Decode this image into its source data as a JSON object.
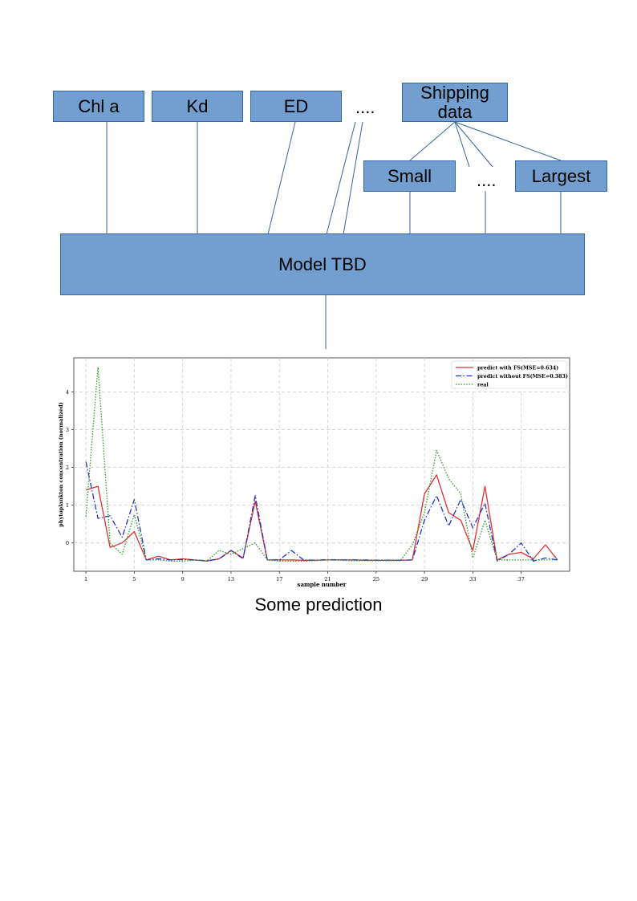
{
  "inputs": {
    "chl": "Chl a",
    "kd": "Kd",
    "ed": "ED",
    "ellipsis": "....",
    "shipping": "Shipping data"
  },
  "shipping_children": {
    "small": "Small",
    "ellipsis": "....",
    "largest": "Largest"
  },
  "model": "Model TBD",
  "caption": "Some prediction",
  "colors": {
    "box_fill": "#729fcf",
    "box_border": "#3465a4",
    "line": "#3465a4",
    "series_fs": "#e03030",
    "series_no_fs": "#2233cc",
    "series_real": "#2a9a2a"
  },
  "chart_data": {
    "type": "line",
    "title": "",
    "xlabel": "sample number",
    "ylabel": "phytoplankton concentration (normalized)",
    "x_ticks": [
      1,
      5,
      9,
      13,
      17,
      21,
      25,
      29,
      33,
      37
    ],
    "y_ticks": [
      0,
      1,
      2,
      3,
      4
    ],
    "xlim": [
      0,
      41
    ],
    "ylim": [
      -0.75,
      4.9
    ],
    "grid": true,
    "legend_position": "top-right",
    "x": [
      1,
      2,
      3,
      4,
      5,
      6,
      7,
      8,
      9,
      10,
      11,
      12,
      13,
      14,
      15,
      16,
      17,
      18,
      19,
      20,
      21,
      22,
      23,
      24,
      25,
      26,
      27,
      28,
      29,
      30,
      31,
      32,
      33,
      34,
      35,
      36,
      37,
      38,
      39,
      40
    ],
    "series": [
      {
        "name": "predict with FS(MSE=0.634)",
        "color": "#e03030",
        "style": "solid",
        "values": [
          1.4,
          1.5,
          -0.12,
          0.0,
          0.3,
          -0.45,
          -0.35,
          -0.45,
          -0.42,
          -0.45,
          -0.48,
          -0.42,
          -0.2,
          -0.4,
          1.1,
          -0.45,
          -0.45,
          -0.45,
          -0.46,
          -0.46,
          -0.45,
          -0.45,
          -0.45,
          -0.46,
          -0.46,
          -0.46,
          -0.46,
          -0.45,
          1.3,
          1.8,
          0.8,
          0.6,
          -0.2,
          1.5,
          -0.45,
          -0.3,
          -0.25,
          -0.42,
          -0.05,
          -0.45
        ]
      },
      {
        "name": "predict without FS(MSE=0.383)",
        "color": "#2233cc",
        "style": "dashdot",
        "values": [
          2.15,
          0.65,
          0.72,
          0.15,
          1.15,
          -0.45,
          -0.42,
          -0.45,
          -0.44,
          -0.45,
          -0.47,
          -0.43,
          -0.2,
          -0.42,
          1.25,
          -0.45,
          -0.45,
          -0.2,
          -0.45,
          -0.46,
          -0.44,
          -0.45,
          -0.45,
          -0.45,
          -0.46,
          -0.46,
          -0.46,
          -0.45,
          0.6,
          1.25,
          0.45,
          1.15,
          0.4,
          1.05,
          -0.48,
          -0.3,
          0.0,
          -0.48,
          -0.4,
          -0.45
        ]
      },
      {
        "name": "real",
        "color": "#2a9a2a",
        "style": "dotted",
        "values": [
          0.7,
          4.65,
          0.0,
          -0.3,
          0.75,
          -0.45,
          -0.45,
          -0.48,
          -0.48,
          -0.46,
          -0.48,
          -0.2,
          -0.3,
          -0.15,
          0.0,
          -0.45,
          -0.48,
          -0.48,
          -0.48,
          -0.47,
          -0.45,
          -0.46,
          -0.47,
          -0.47,
          -0.47,
          -0.47,
          -0.47,
          -0.05,
          0.8,
          2.45,
          1.7,
          1.3,
          -0.4,
          0.6,
          -0.45,
          -0.45,
          -0.45,
          -0.45,
          -0.45,
          -0.45
        ]
      }
    ]
  }
}
